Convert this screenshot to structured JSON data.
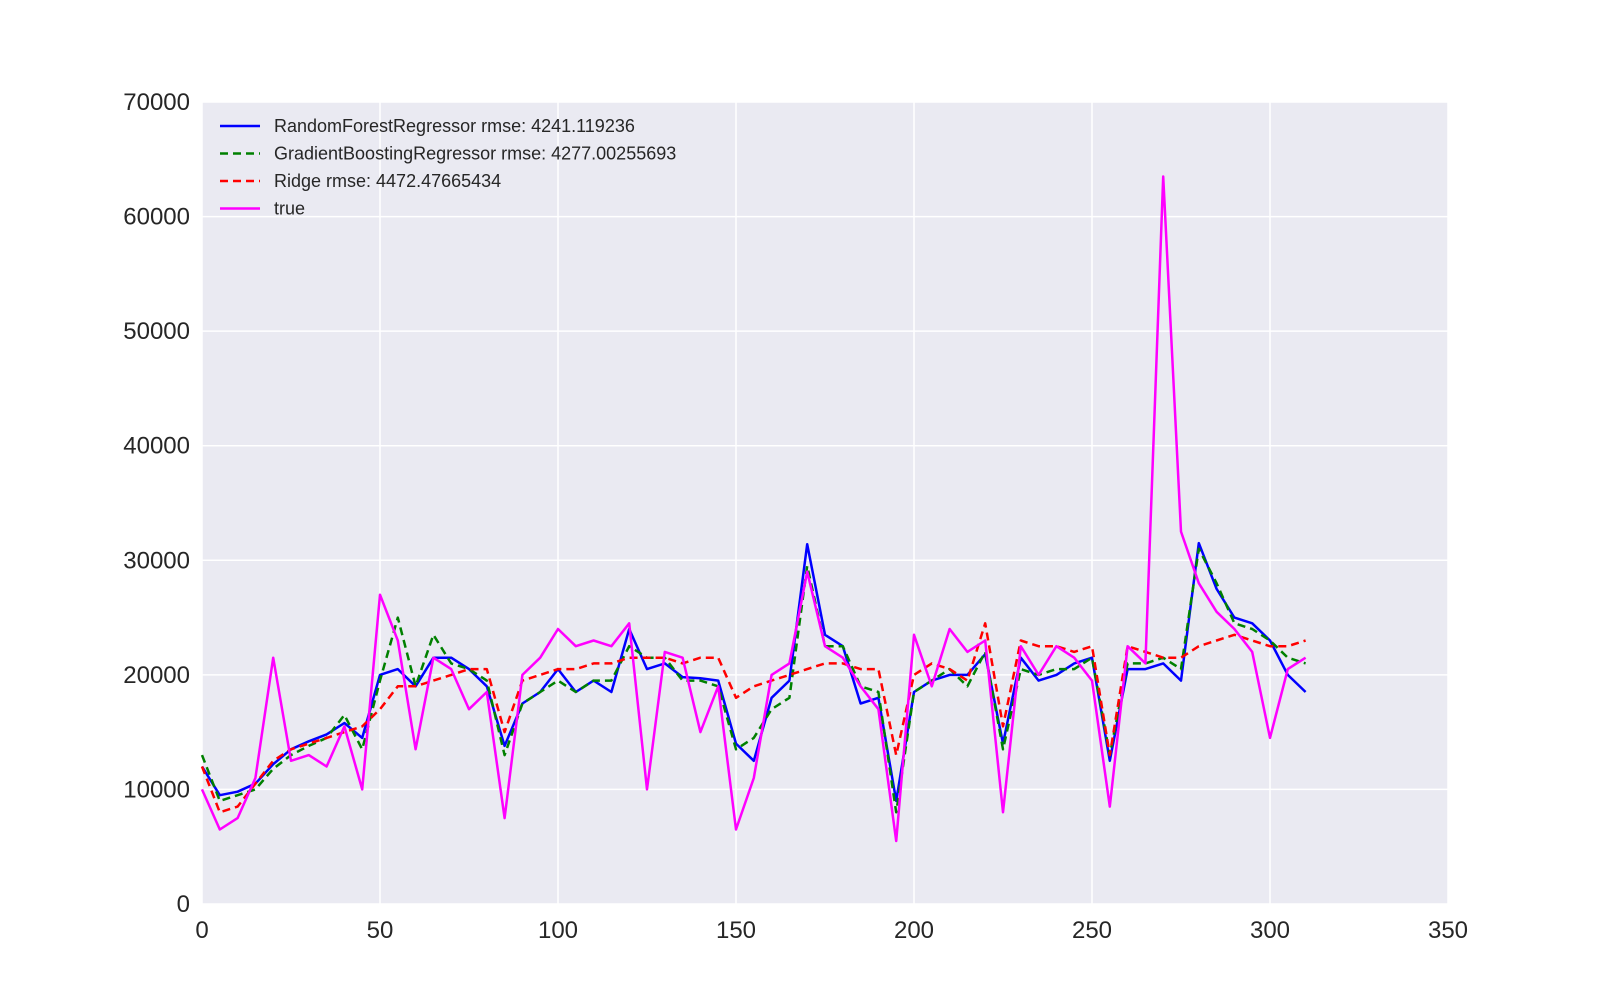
{
  "chart_data": {
    "type": "line",
    "title": "",
    "xlabel": "",
    "ylabel": "",
    "xlim": [
      0,
      350
    ],
    "ylim": [
      0,
      70000
    ],
    "x_ticks": [
      0,
      50,
      100,
      150,
      200,
      250,
      300,
      350
    ],
    "y_ticks": [
      0,
      10000,
      20000,
      30000,
      40000,
      50000,
      60000,
      70000
    ],
    "grid": true,
    "legend_position": "top-left",
    "background": "#EAEAF2",
    "x": [
      0,
      5,
      10,
      15,
      20,
      25,
      30,
      35,
      40,
      45,
      50,
      55,
      60,
      65,
      70,
      75,
      80,
      85,
      90,
      95,
      100,
      105,
      110,
      115,
      120,
      125,
      130,
      135,
      140,
      145,
      150,
      155,
      160,
      165,
      170,
      175,
      180,
      185,
      190,
      195,
      200,
      205,
      210,
      215,
      220,
      225,
      230,
      235,
      240,
      245,
      250,
      255,
      260,
      265,
      270,
      275,
      280,
      285,
      290,
      295,
      300,
      305,
      310
    ],
    "series": [
      {
        "name": "RandomForestRegressor rmse: 4241.119236",
        "color": "#0000FF",
        "dash": "solid",
        "values": [
          12000,
          9500,
          9800,
          10500,
          12200,
          13500,
          14200,
          14800,
          15800,
          14500,
          20000,
          20500,
          19000,
          21500,
          21500,
          20500,
          19000,
          13800,
          17500,
          18500,
          20500,
          18500,
          19500,
          18500,
          24000,
          20500,
          21000,
          19800,
          19700,
          19500,
          14000,
          12500,
          18000,
          19500,
          31400,
          23500,
          22500,
          17500,
          18000,
          9000,
          18500,
          19500,
          20000,
          20000,
          21800,
          14000,
          21500,
          19500,
          20000,
          21000,
          21500,
          12500,
          20500,
          20500,
          21000,
          19500,
          31500,
          27500,
          25000,
          24500,
          23000,
          20000,
          18500
        ]
      },
      {
        "name": "GradientBoostingRegressor rmse: 4277.00255693",
        "color": "#008000",
        "dash": "dashed",
        "values": [
          13000,
          9000,
          9500,
          10000,
          11800,
          13000,
          13800,
          14500,
          16500,
          13500,
          19500,
          25000,
          19000,
          23500,
          21000,
          20500,
          19500,
          13000,
          17500,
          18500,
          19500,
          18500,
          19500,
          19500,
          22500,
          21500,
          21500,
          19500,
          19500,
          19000,
          13500,
          14500,
          17000,
          18000,
          29500,
          22500,
          22500,
          19000,
          18500,
          8000,
          18500,
          19500,
          20500,
          19000,
          22000,
          13500,
          20500,
          20000,
          20500,
          20500,
          21500,
          13000,
          21000,
          21000,
          21500,
          20500,
          31000,
          28000,
          24500,
          24000,
          23000,
          21500,
          21000
        ]
      },
      {
        "name": "Ridge rmse: 4472.47665434",
        "color": "#FF0000",
        "dash": "dashed",
        "values": [
          12000,
          8000,
          8500,
          10500,
          12500,
          13500,
          14000,
          14500,
          15000,
          15500,
          17000,
          19000,
          19000,
          19500,
          20000,
          20500,
          20500,
          15000,
          19500,
          20000,
          20500,
          20500,
          21000,
          21000,
          21500,
          21500,
          21500,
          21000,
          21500,
          21500,
          18000,
          19000,
          19500,
          20000,
          20500,
          21000,
          21000,
          20500,
          20500,
          13000,
          20000,
          21000,
          20500,
          19500,
          24500,
          15500,
          23000,
          22500,
          22500,
          22000,
          22500,
          13000,
          22500,
          22000,
          21500,
          21500,
          22500,
          23000,
          23500,
          23000,
          22500,
          22500,
          23000
        ]
      },
      {
        "name": "true",
        "color": "#FF00FF",
        "dash": "solid",
        "values": [
          10000,
          6500,
          7500,
          11000,
          21500,
          12500,
          13000,
          12000,
          15500,
          10000,
          27000,
          23000,
          13500,
          21500,
          20500,
          17000,
          18500,
          7500,
          20000,
          21500,
          24000,
          22500,
          23000,
          22500,
          24500,
          10000,
          22000,
          21500,
          15000,
          19000,
          6500,
          11000,
          20000,
          21000,
          29000,
          22500,
          21500,
          19000,
          17000,
          5500,
          23500,
          19000,
          24000,
          22000,
          23000,
          8000,
          22500,
          20000,
          22500,
          21500,
          19500,
          8500,
          22500,
          21000,
          63500,
          32500,
          28000,
          25500,
          24000,
          22000,
          14500,
          20500,
          21500
        ]
      }
    ]
  }
}
